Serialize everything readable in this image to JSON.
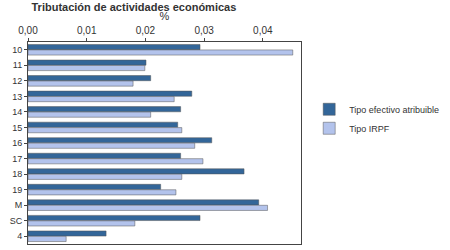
{
  "chart_data": {
    "type": "bar",
    "orientation": "horizontal",
    "title": "Tributación de actividades económicas",
    "x_label": "%",
    "categories": [
      "10",
      "11",
      "12",
      "13",
      "14",
      "15",
      "16",
      "17",
      "18",
      "19",
      "M",
      "SC",
      "4"
    ],
    "series": [
      {
        "name": "Tipo efectivo atribuible",
        "color": "#336699",
        "values": [
          0.0293,
          0.0201,
          0.0209,
          0.0279,
          0.026,
          0.0255,
          0.0313,
          0.026,
          0.0368,
          0.0226,
          0.0393,
          0.0293,
          0.0133
        ]
      },
      {
        "name": "Tipo IRPF",
        "color": "#b3c3ec",
        "values": [
          0.0451,
          0.0199,
          0.0179,
          0.0249,
          0.0209,
          0.0262,
          0.0284,
          0.0298,
          0.0262,
          0.0252,
          0.0408,
          0.0182,
          0.0065
        ]
      }
    ],
    "xlim": [
      0,
      0.0465
    ],
    "xticks": [
      {
        "value": 0,
        "label": "0,00"
      },
      {
        "value": 0.01,
        "label": "0,01"
      },
      {
        "value": 0.02,
        "label": "0,02"
      },
      {
        "value": 0.03,
        "label": "0,03"
      },
      {
        "value": 0.04,
        "label": "0,04"
      }
    ],
    "grid": false,
    "legend": "right"
  }
}
